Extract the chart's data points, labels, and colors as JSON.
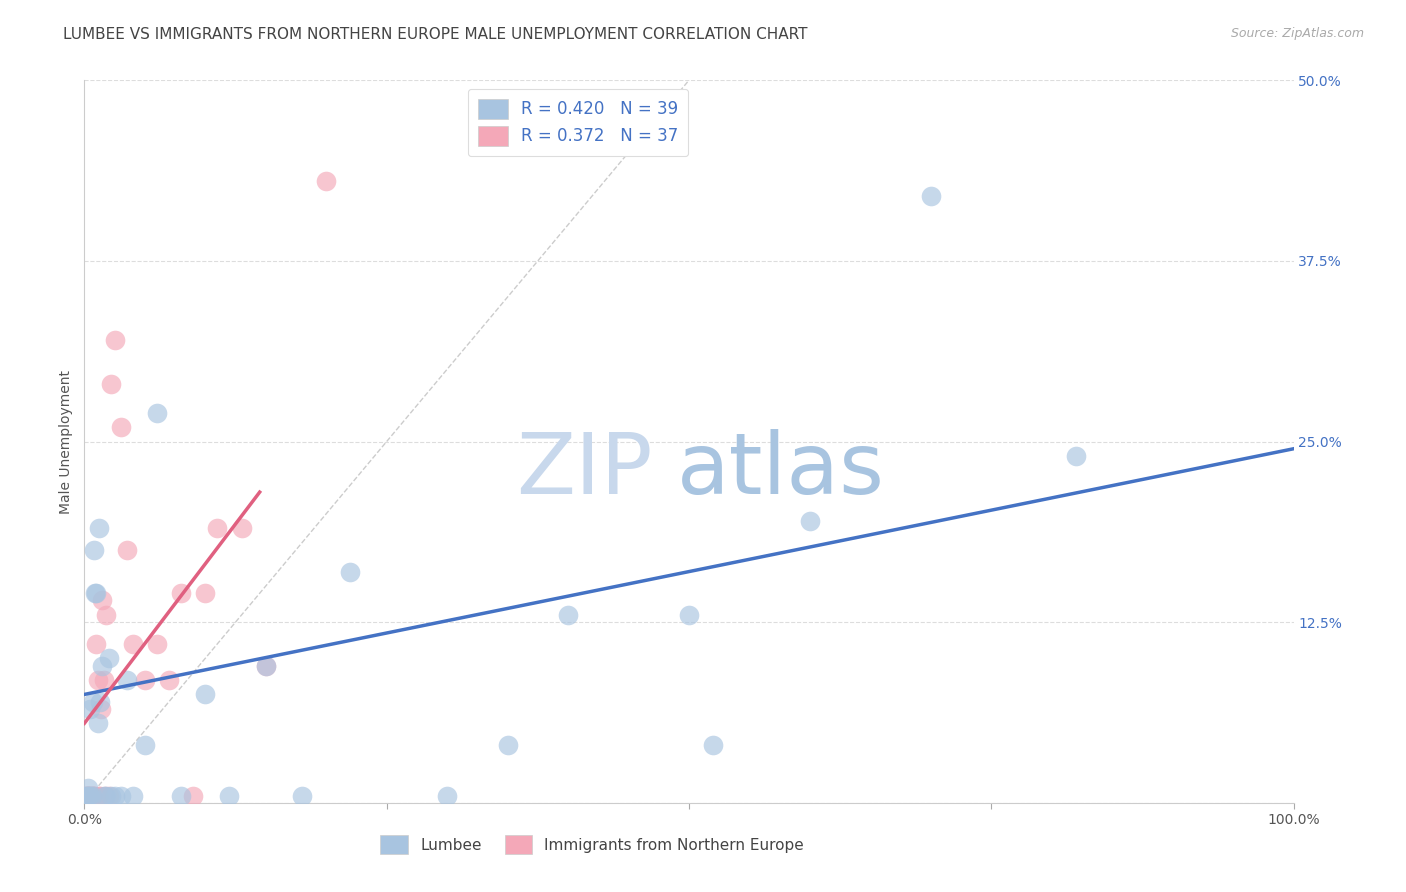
{
  "title": "LUMBEE VS IMMIGRANTS FROM NORTHERN EUROPE MALE UNEMPLOYMENT CORRELATION CHART",
  "source": "Source: ZipAtlas.com",
  "xlabel": "",
  "ylabel": "Male Unemployment",
  "xlim": [
    0,
    1.0
  ],
  "ylim": [
    0,
    0.5
  ],
  "xticks": [
    0.0,
    0.25,
    0.5,
    0.75,
    1.0
  ],
  "xtick_labels": [
    "0.0%",
    "",
    "",
    "",
    "100.0%"
  ],
  "yticks": [
    0.0,
    0.125,
    0.25,
    0.375,
    0.5
  ],
  "ytick_labels": [
    "",
    "12.5%",
    "25.0%",
    "37.5%",
    "50.0%"
  ],
  "lumbee_R": 0.42,
  "lumbee_N": 39,
  "immig_R": 0.372,
  "immig_N": 37,
  "lumbee_color": "#a8c4e0",
  "immig_color": "#f4a8b8",
  "trend_blue": "#4472c4",
  "trend_pink": "#e06080",
  "lumbee_x": [
    0.001,
    0.002,
    0.003,
    0.004,
    0.005,
    0.005,
    0.006,
    0.007,
    0.008,
    0.009,
    0.01,
    0.011,
    0.012,
    0.013,
    0.015,
    0.016,
    0.018,
    0.02,
    0.022,
    0.025,
    0.03,
    0.035,
    0.04,
    0.05,
    0.06,
    0.08,
    0.1,
    0.12,
    0.15,
    0.18,
    0.22,
    0.3,
    0.35,
    0.4,
    0.5,
    0.52,
    0.6,
    0.7,
    0.82
  ],
  "lumbee_y": [
    0.005,
    0.005,
    0.01,
    0.005,
    0.005,
    0.065,
    0.005,
    0.07,
    0.175,
    0.145,
    0.145,
    0.055,
    0.19,
    0.07,
    0.095,
    0.005,
    0.005,
    0.1,
    0.005,
    0.005,
    0.005,
    0.085,
    0.005,
    0.04,
    0.27,
    0.005,
    0.075,
    0.005,
    0.095,
    0.005,
    0.16,
    0.005,
    0.04,
    0.13,
    0.13,
    0.04,
    0.195,
    0.42,
    0.24
  ],
  "immig_x": [
    0.0,
    0.001,
    0.002,
    0.003,
    0.003,
    0.004,
    0.005,
    0.006,
    0.007,
    0.007,
    0.008,
    0.009,
    0.01,
    0.011,
    0.012,
    0.013,
    0.014,
    0.015,
    0.016,
    0.017,
    0.018,
    0.02,
    0.022,
    0.025,
    0.03,
    0.035,
    0.04,
    0.05,
    0.06,
    0.07,
    0.08,
    0.09,
    0.1,
    0.11,
    0.13,
    0.15,
    0.2
  ],
  "immig_y": [
    0.005,
    0.005,
    0.005,
    0.005,
    0.005,
    0.005,
    0.005,
    0.005,
    0.005,
    0.005,
    0.005,
    0.005,
    0.11,
    0.085,
    0.005,
    0.005,
    0.065,
    0.14,
    0.085,
    0.005,
    0.13,
    0.005,
    0.29,
    0.32,
    0.26,
    0.175,
    0.11,
    0.085,
    0.11,
    0.085,
    0.145,
    0.005,
    0.145,
    0.19,
    0.19,
    0.095,
    0.43
  ],
  "background_color": "#ffffff",
  "grid_color": "#dddddd",
  "title_fontsize": 11,
  "axis_label_fontsize": 10,
  "tick_fontsize": 10,
  "watermark_zip": "ZIP",
  "watermark_atlas": "atlas",
  "watermark_color_zip": "#c8d8ec",
  "watermark_color_atlas": "#a8c4e0",
  "watermark_fontsize": 62
}
